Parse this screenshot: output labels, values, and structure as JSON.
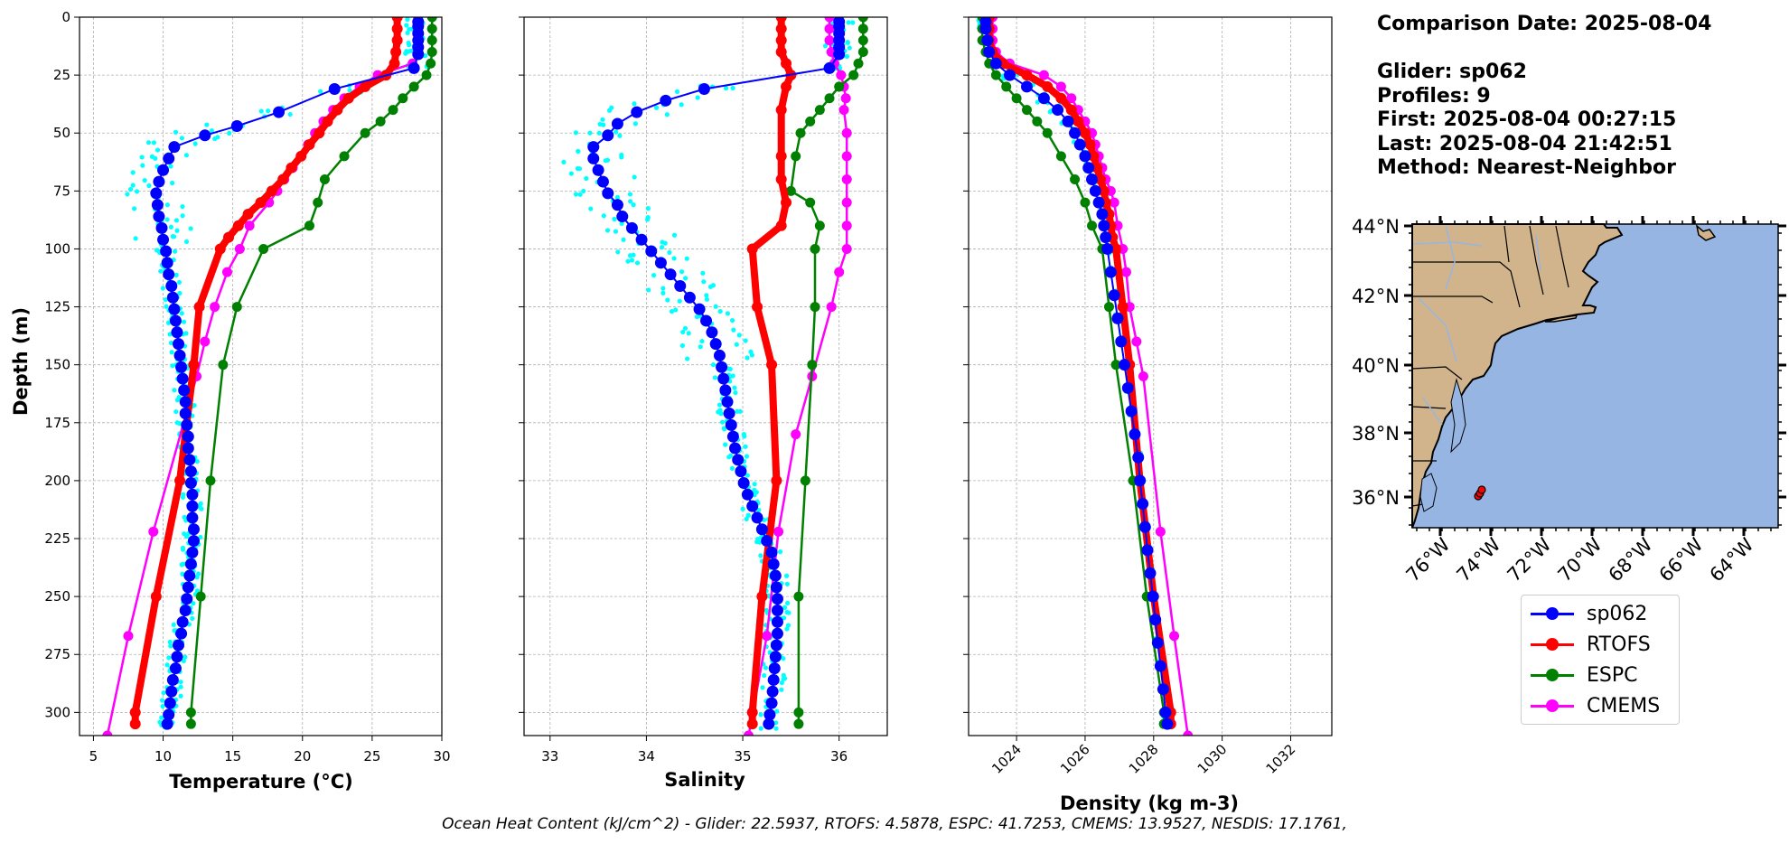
{
  "info": {
    "comparison": "Comparison Date: 2025-08-04",
    "glider": "Glider: sp062",
    "profiles": "Profiles: 9",
    "first": "First: 2025-08-04 00:27:15",
    "last": "Last: 2025-08-04 21:42:51",
    "method": "Method: Nearest-Neighbor"
  },
  "footer": "Ocean Heat Content (kJ/cm^2) - Glider: 22.5937,  RTOFS: 4.5878,  ESPC: 41.7253,  CMEMS: 13.9527,  NESDIS: 17.1761,",
  "colors": {
    "glider": "#0000ff",
    "glider_raw": "#00ffff",
    "rtofs": "#ff0000",
    "espc": "#008000",
    "cmems": "#ff00ff",
    "land": "#d2b48c",
    "ocean": "#96b5e2"
  },
  "legend": [
    {
      "name": "sp062",
      "color": "#0000ff"
    },
    {
      "name": "RTOFS",
      "color": "#ff0000"
    },
    {
      "name": "ESPC",
      "color": "#008000"
    },
    {
      "name": "CMEMS",
      "color": "#ff00ff"
    }
  ],
  "chart_data": [
    {
      "type": "line",
      "id": "temperature",
      "xlabel": "Temperature (°C)",
      "ylabel": "Depth (m)",
      "xlim": [
        4,
        30
      ],
      "ylim": [
        310,
        0
      ],
      "xticks": [
        5,
        10,
        15,
        20,
        25,
        30
      ],
      "yticks": [
        0,
        25,
        50,
        75,
        100,
        125,
        150,
        175,
        200,
        225,
        250,
        275,
        300
      ],
      "grid": true,
      "series": [
        {
          "name": "sp062",
          "depth": [
            2,
            4,
            7,
            10,
            13,
            16,
            22,
            31,
            41,
            47,
            51,
            56,
            61,
            66,
            71,
            76,
            81,
            86,
            91,
            96,
            101,
            106,
            111,
            116,
            121,
            126,
            131,
            136,
            141,
            146,
            151,
            156,
            161,
            166,
            171,
            176,
            181,
            186,
            191,
            196,
            201,
            206,
            211,
            216,
            221,
            226,
            231,
            236,
            241,
            246,
            251,
            256,
            261,
            266,
            271,
            276,
            281,
            286,
            291,
            296,
            301,
            305
          ],
          "values": [
            28.3,
            28.3,
            28.3,
            28.3,
            28.3,
            28.3,
            28.0,
            22.3,
            18.3,
            15.3,
            13.0,
            10.8,
            10.4,
            10.0,
            9.7,
            9.5,
            9.6,
            9.7,
            9.9,
            10.0,
            10.2,
            10.3,
            10.4,
            10.6,
            10.7,
            10.8,
            10.9,
            11.0,
            11.1,
            11.2,
            11.3,
            11.4,
            11.5,
            11.6,
            11.6,
            11.7,
            11.8,
            11.8,
            11.9,
            12.0,
            12.0,
            12.1,
            12.1,
            12.1,
            12.2,
            12.2,
            12.1,
            12.0,
            11.9,
            11.8,
            11.7,
            11.6,
            11.4,
            11.3,
            11.1,
            11.0,
            10.9,
            10.7,
            10.6,
            10.5,
            10.4,
            10.3
          ]
        },
        {
          "name": "RTOFS",
          "depth": [
            0,
            5,
            10,
            15,
            20,
            25,
            30,
            35,
            40,
            45,
            50,
            55,
            60,
            65,
            70,
            75,
            80,
            85,
            90,
            95,
            100,
            125,
            150,
            200,
            250,
            300,
            305
          ],
          "values": [
            26.8,
            26.8,
            26.8,
            26.7,
            26.6,
            26.0,
            24.5,
            23.3,
            22.5,
            21.8,
            21.2,
            20.5,
            19.9,
            19.2,
            18.6,
            17.8,
            17.0,
            16.1,
            15.4,
            14.7,
            14.1,
            12.6,
            12.2,
            11.2,
            9.5,
            8.0,
            8.0
          ]
        },
        {
          "name": "ESPC",
          "depth": [
            0,
            5,
            10,
            15,
            20,
            25,
            30,
            35,
            40,
            45,
            50,
            60,
            70,
            80,
            90,
            100,
            125,
            150,
            200,
            250,
            300,
            305
          ],
          "values": [
            29.3,
            29.3,
            29.3,
            29.3,
            29.2,
            28.9,
            28.0,
            27.2,
            26.5,
            25.6,
            24.5,
            23.0,
            21.6,
            21.1,
            20.5,
            17.2,
            15.3,
            14.3,
            13.4,
            12.7,
            12.0,
            12.0
          ]
        },
        {
          "name": "CMEMS",
          "depth": [
            0,
            5,
            10,
            15,
            20,
            25,
            30,
            35,
            40,
            45,
            50,
            55,
            60,
            65,
            70,
            75,
            80,
            90,
            100,
            110,
            125,
            140,
            155,
            222,
            267,
            310
          ],
          "values": [
            28.3,
            28.3,
            28.3,
            28.3,
            27.9,
            25.4,
            24.1,
            23.0,
            22.2,
            21.5,
            20.9,
            20.4,
            19.9,
            19.3,
            18.7,
            18.2,
            17.6,
            16.2,
            15.5,
            14.6,
            13.7,
            13.0,
            12.4,
            9.3,
            7.5,
            6.0
          ]
        }
      ]
    },
    {
      "type": "line",
      "id": "salinity",
      "xlabel": "Salinity",
      "xlim": [
        32.73,
        36.5
      ],
      "ylim": [
        310,
        0
      ],
      "xticks": [
        33,
        34,
        35,
        36
      ],
      "grid": true,
      "series": [
        {
          "name": "sp062",
          "depth": [
            2,
            4,
            7,
            10,
            13,
            16,
            22,
            31,
            36,
            41,
            46,
            51,
            56,
            61,
            66,
            71,
            76,
            81,
            86,
            91,
            96,
            101,
            106,
            111,
            116,
            121,
            126,
            131,
            136,
            141,
            146,
            151,
            156,
            161,
            166,
            171,
            176,
            181,
            186,
            191,
            196,
            201,
            206,
            211,
            216,
            221,
            226,
            231,
            236,
            241,
            246,
            251,
            256,
            261,
            266,
            271,
            276,
            281,
            286,
            291,
            296,
            301,
            305
          ],
          "values": [
            36.0,
            36.0,
            36.0,
            36.0,
            36.0,
            36.0,
            35.9,
            34.6,
            34.2,
            33.9,
            33.7,
            33.6,
            33.45,
            33.45,
            33.5,
            33.55,
            33.6,
            33.7,
            33.75,
            33.85,
            33.95,
            34.05,
            34.15,
            34.25,
            34.35,
            34.45,
            34.55,
            34.62,
            34.68,
            34.72,
            34.76,
            34.78,
            34.8,
            34.82,
            34.84,
            34.86,
            34.88,
            34.9,
            34.92,
            34.95,
            34.98,
            35.01,
            35.05,
            35.1,
            35.15,
            35.2,
            35.25,
            35.3,
            35.32,
            35.34,
            35.35,
            35.36,
            35.36,
            35.36,
            35.36,
            35.35,
            35.34,
            35.33,
            35.32,
            35.31,
            35.3,
            35.28,
            35.27
          ]
        },
        {
          "name": "RTOFS",
          "depth": [
            0,
            5,
            10,
            15,
            20,
            25,
            30,
            40,
            60,
            70,
            80,
            90,
            100,
            125,
            150,
            200,
            250,
            300,
            305
          ],
          "values": [
            35.4,
            35.4,
            35.4,
            35.4,
            35.45,
            35.5,
            35.45,
            35.4,
            35.4,
            35.4,
            35.45,
            35.4,
            35.1,
            35.15,
            35.3,
            35.35,
            35.2,
            35.1,
            35.1
          ]
        },
        {
          "name": "ESPC",
          "depth": [
            0,
            5,
            10,
            15,
            20,
            25,
            30,
            35,
            40,
            45,
            50,
            60,
            75,
            80,
            90,
            100,
            125,
            150,
            200,
            250,
            300,
            305
          ],
          "values": [
            36.25,
            36.25,
            36.25,
            36.25,
            36.2,
            36.15,
            36.0,
            35.9,
            35.8,
            35.7,
            35.6,
            35.55,
            35.5,
            35.7,
            35.8,
            35.75,
            35.75,
            35.72,
            35.65,
            35.58,
            35.58,
            35.58
          ]
        },
        {
          "name": "CMEMS",
          "depth": [
            0,
            5,
            10,
            15,
            20,
            25,
            30,
            35,
            40,
            50,
            60,
            70,
            80,
            90,
            100,
            110,
            125,
            155,
            180,
            222,
            267,
            310
          ],
          "values": [
            35.9,
            35.9,
            35.9,
            35.92,
            35.95,
            36.02,
            36.05,
            36.07,
            36.05,
            36.08,
            36.08,
            36.08,
            36.08,
            36.08,
            36.08,
            36.0,
            35.92,
            35.72,
            35.55,
            35.37,
            35.25,
            35.06
          ]
        }
      ]
    },
    {
      "type": "line",
      "id": "density",
      "xlabel": "Density (kg m-3)",
      "xlim": [
        1022.6,
        1033.2
      ],
      "ylim": [
        310,
        0
      ],
      "xticks": [
        1024,
        1026,
        1028,
        1030,
        1032
      ],
      "grid": true,
      "series": [
        {
          "name": "sp062",
          "depth": [
            2,
            5,
            10,
            15,
            20,
            25,
            30,
            35,
            40,
            45,
            50,
            55,
            60,
            65,
            70,
            75,
            80,
            85,
            90,
            95,
            100,
            110,
            120,
            130,
            140,
            150,
            160,
            170,
            180,
            190,
            200,
            210,
            220,
            230,
            240,
            250,
            260,
            270,
            280,
            290,
            300,
            305
          ],
          "values": [
            1023.1,
            1023.1,
            1023.15,
            1023.2,
            1023.4,
            1023.8,
            1024.3,
            1024.8,
            1025.2,
            1025.5,
            1025.7,
            1025.85,
            1026.0,
            1026.1,
            1026.2,
            1026.3,
            1026.4,
            1026.5,
            1026.55,
            1026.6,
            1026.65,
            1026.75,
            1026.85,
            1026.95,
            1027.05,
            1027.15,
            1027.25,
            1027.35,
            1027.45,
            1027.55,
            1027.6,
            1027.68,
            1027.75,
            1027.82,
            1027.9,
            1027.98,
            1028.05,
            1028.12,
            1028.2,
            1028.28,
            1028.35,
            1028.4
          ]
        },
        {
          "name": "RTOFS",
          "depth": [
            0,
            5,
            10,
            15,
            20,
            25,
            30,
            35,
            40,
            45,
            50,
            55,
            60,
            65,
            70,
            75,
            80,
            85,
            90,
            95,
            100,
            125,
            150,
            200,
            250,
            300,
            305
          ],
          "values": [
            1023.2,
            1023.2,
            1023.2,
            1023.3,
            1023.6,
            1024.3,
            1024.9,
            1025.3,
            1025.6,
            1025.8,
            1026.0,
            1026.15,
            1026.25,
            1026.35,
            1026.45,
            1026.55,
            1026.6,
            1026.7,
            1026.75,
            1026.8,
            1026.9,
            1027.1,
            1027.3,
            1027.6,
            1028.0,
            1028.5,
            1028.5
          ]
        },
        {
          "name": "ESPC",
          "depth": [
            0,
            5,
            10,
            15,
            20,
            25,
            30,
            35,
            40,
            45,
            50,
            60,
            70,
            80,
            90,
            100,
            125,
            150,
            200,
            250,
            300,
            305
          ],
          "values": [
            1023.0,
            1023.0,
            1023.0,
            1023.1,
            1023.2,
            1023.4,
            1023.7,
            1024.0,
            1024.3,
            1024.6,
            1024.9,
            1025.3,
            1025.7,
            1026.0,
            1026.2,
            1026.5,
            1026.7,
            1026.9,
            1027.4,
            1027.8,
            1028.3,
            1028.3
          ]
        },
        {
          "name": "CMEMS",
          "depth": [
            0,
            5,
            10,
            15,
            20,
            25,
            30,
            35,
            40,
            45,
            50,
            55,
            60,
            65,
            70,
            75,
            80,
            90,
            100,
            110,
            125,
            140,
            155,
            222,
            267,
            310
          ],
          "values": [
            1023.3,
            1023.3,
            1023.3,
            1023.4,
            1023.8,
            1024.8,
            1025.3,
            1025.6,
            1025.8,
            1026.0,
            1026.2,
            1026.3,
            1026.4,
            1026.5,
            1026.6,
            1026.75,
            1026.85,
            1026.95,
            1027.1,
            1027.2,
            1027.3,
            1027.5,
            1027.7,
            1028.2,
            1028.6,
            1029.0
          ]
        }
      ]
    }
  ],
  "map": {
    "lat_labels": [
      "44°N",
      "42°N",
      "40°N",
      "38°N",
      "36°N"
    ],
    "lon_labels": [
      "76°W",
      "74°W",
      "72°W",
      "70°W",
      "68°W",
      "66°W",
      "64°W"
    ],
    "glider_location": {
      "lon": -73.4,
      "lat": 36.2
    }
  }
}
